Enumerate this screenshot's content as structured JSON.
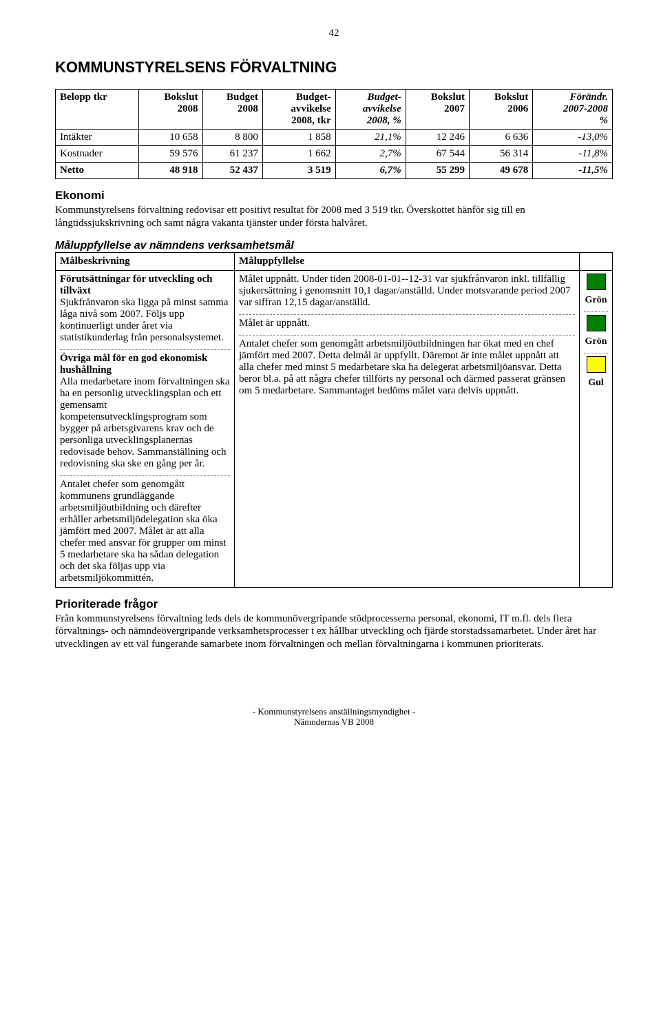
{
  "page_number": "42",
  "title": "KOMMUNSTYRELSENS FÖRVALTNING",
  "table": {
    "columns": [
      "Belopp tkr",
      "Bokslut\n2008",
      "Budget\n2008",
      "Budget-\navvikelse\n2008, tkr",
      "Budget-\navvikelse\n2008, %",
      "Bokslut\n2007",
      "Bokslut\n2006",
      "Förändr.\n2007-2008\n%"
    ],
    "col_align": [
      "label",
      "num",
      "num",
      "num",
      "num",
      "num",
      "num",
      "num"
    ],
    "col_italic": [
      false,
      false,
      false,
      false,
      true,
      false,
      false,
      true
    ],
    "rows": [
      {
        "label": "Intäkter",
        "cells": [
          "10 658",
          "8 800",
          "1 858",
          "21,1%",
          "12 246",
          "6 636",
          "-13,0%"
        ],
        "bold": false
      },
      {
        "label": "Kostnader",
        "cells": [
          "59 576",
          "61 237",
          "1 662",
          "2,7%",
          "67 544",
          "56 314",
          "-11,8%"
        ],
        "bold": false
      },
      {
        "label": "Netto",
        "cells": [
          "48 918",
          "52 437",
          "3 519",
          "6,7%",
          "55 299",
          "49 678",
          "-11,5%"
        ],
        "bold": true
      }
    ]
  },
  "ekonomi": {
    "heading": "Ekonomi",
    "text": "Kommunstyrelsens förvaltning redovisar ett positivt resultat för 2008 med 3 519 tkr. Överskottet hänför sig till en långtidssjukskrivning och samt några vakanta tjänster under första halvåret."
  },
  "goals_section": {
    "heading": "Måluppfyllelse av nämndens verksamhetsmål",
    "columns": [
      "Målbeskrivning",
      "Måluppfyllelse",
      ""
    ],
    "rows": [
      {
        "desc_bold": "Förutsättningar för utveckling och tillväxt",
        "desc": "Sjukfrånvaron ska ligga på minst samma låga nivå som 2007. Följs upp kontinuerligt under året via statistikunderlag från personalsystemet.",
        "fulfil": "Målet uppnått. Under tiden 2008-01-01--12-31 var sjukfrånvaron inkl. tillfällig sjukersättning i genomsnitt 10,1 dagar/anställd. Under motsvarande period 2007 var siffran 12,15 dagar/anställd.",
        "status_label": "Grön",
        "status_color": "#008000"
      },
      {
        "desc_bold": "Övriga mål för en god ekonomisk hushållning",
        "desc": "Alla medarbetare inom förvaltningen ska ha en personlig utvecklingsplan och ett gemensamt kompetensutvecklingsprogram som bygger på arbetsgivarens krav och de personliga utvecklingsplanernas redovisade behov. Sammanställning och redovisning ska ske en gång per år.",
        "fulfil": "Målet är uppnått.",
        "status_label": "Grön",
        "status_color": "#008000"
      },
      {
        "desc_bold": "",
        "desc": "Antalet chefer som genomgått kommunens grundläggande arbetsmiljöutbildning och därefter erhåller arbetsmiljödelegation ska öka jämfört med 2007. Målet är att alla chefer med ansvar för grupper om minst 5 medarbetare ska ha sådan delegation och det ska följas upp via arbetsmiljökommittén.",
        "fulfil": "Antalet chefer som genomgått arbetsmiljöutbildningen har ökat med en chef jämfört med 2007. Detta delmål är uppfyllt. Däremot är inte målet uppnått att alla chefer med minst 5 medarbetare ska ha delegerat arbetsmiljöansvar. Detta beror bl.a. på att några chefer tillförts ny personal och därmed passerat gränsen om 5 medarbetare. Sammantaget bedöms målet vara delvis uppnått.",
        "status_label": "Gul",
        "status_color": "#ffff00"
      }
    ]
  },
  "priorities": {
    "heading": "Prioriterade frågor",
    "text": "Från kommunstyrelsens förvaltning leds dels de kommunövergripande stödprocesserna personal, ekonomi, IT m.fl. dels flera förvaltnings- och nämndeövergripande verksamhetsprocesser t ex hållbar utveckling och fjärde storstadssamarbetet. Under året har utvecklingen av ett väl fungerande samarbete inom förvaltningen och mellan förvaltningarna i kommunen prioriterats."
  },
  "footer": {
    "line1": "- Kommunstyrelsens anställningsmyndighet -",
    "line2": "Nämndernas VB 2008"
  }
}
